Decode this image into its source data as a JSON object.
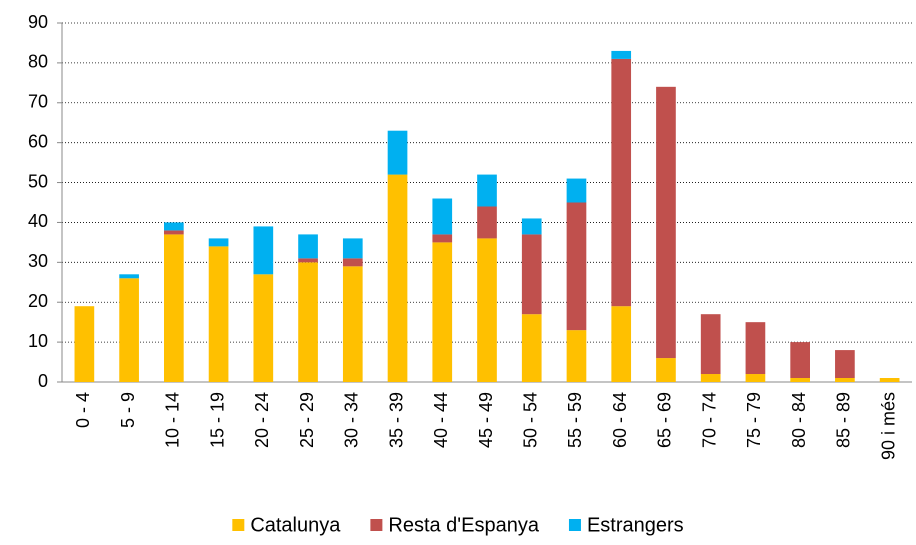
{
  "chart_data": {
    "type": "stacked_bar",
    "categories": [
      "0 - 4",
      "5 - 9",
      "10 - 14",
      "15 - 19",
      "20 - 24",
      "25 - 29",
      "30 - 34",
      "35 - 39",
      "40 - 44",
      "45 - 49",
      "50 - 54",
      "55 - 59",
      "60 - 64",
      "65 - 69",
      "70 - 74",
      "75 - 79",
      "80 - 84",
      "85 - 89",
      "90 i més"
    ],
    "series": [
      {
        "name": "Catalunya",
        "color": "#FFC000",
        "values": [
          19,
          26,
          37,
          34,
          27,
          30,
          29,
          52,
          35,
          36,
          17,
          13,
          19,
          6,
          2,
          2,
          1,
          1,
          1
        ]
      },
      {
        "name": "Resta d'Espanya",
        "color": "#C0504D",
        "values": [
          0,
          0,
          1,
          0,
          0,
          1,
          2,
          0,
          2,
          8,
          20,
          32,
          62,
          68,
          15,
          13,
          9,
          7,
          0
        ]
      },
      {
        "name": "Estrangers",
        "color": "#00B0F0",
        "values": [
          0,
          1,
          2,
          2,
          12,
          6,
          5,
          11,
          9,
          8,
          4,
          6,
          2,
          0,
          0,
          0,
          0,
          0,
          0
        ]
      }
    ],
    "ylim": [
      0,
      90
    ],
    "yticks": [
      0,
      10,
      20,
      30,
      40,
      50,
      60,
      70,
      80,
      90
    ],
    "grid": true,
    "legend": "bottom"
  }
}
